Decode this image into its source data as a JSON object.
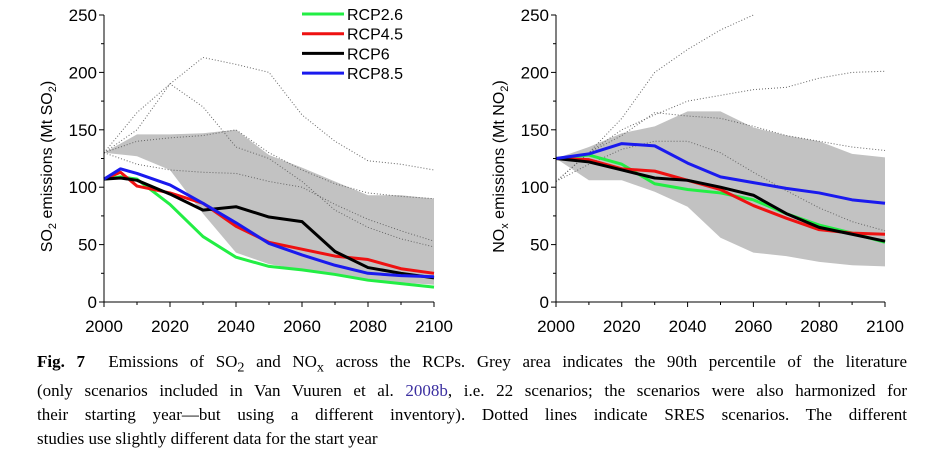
{
  "chart_data": [
    {
      "type": "line",
      "ylabel_parts": [
        "SO",
        "2",
        " emissions (Mt SO",
        "2",
        ")"
      ],
      "xlim": [
        2000,
        2100
      ],
      "ylim": [
        0,
        250
      ],
      "xticks": [
        2000,
        2020,
        2040,
        2060,
        2080,
        2100
      ],
      "yticks": [
        0,
        50,
        100,
        150,
        200,
        250
      ],
      "grid": false,
      "legend_position": "top-right",
      "x": [
        2000,
        2005,
        2010,
        2020,
        2030,
        2040,
        2050,
        2060,
        2070,
        2080,
        2090,
        2100
      ],
      "series": [
        {
          "name": "RCP2.6",
          "color": "#22ee44",
          "values": [
            107,
            109,
            107,
            85,
            57,
            39,
            31,
            28,
            24,
            19,
            16,
            13
          ]
        },
        {
          "name": "RCP4.5",
          "color": "#ee1111",
          "values": [
            107,
            113,
            101,
            95,
            86,
            66,
            52,
            46,
            40,
            37,
            29,
            25
          ]
        },
        {
          "name": "RCP6",
          "color": "#000000",
          "values": [
            107,
            108,
            106,
            94,
            80,
            83,
            74,
            70,
            44,
            30,
            25,
            21
          ]
        },
        {
          "name": "RCP8.5",
          "color": "#1a1aee",
          "values": [
            107,
            116,
            112,
            102,
            86,
            69,
            51,
            41,
            32,
            25,
            23,
            22
          ]
        }
      ],
      "band": {
        "color": "#c2c2c2",
        "x": [
          2000,
          2010,
          2020,
          2030,
          2040,
          2050,
          2060,
          2070,
          2080,
          2090,
          2100
        ],
        "upper": [
          130,
          146,
          146,
          147,
          150,
          128,
          117,
          105,
          93,
          93,
          90
        ],
        "lower": [
          130,
          127,
          115,
          77,
          43,
          33,
          28,
          24,
          20,
          17,
          15
        ]
      },
      "dotted_x": [
        2000,
        2010,
        2020,
        2030,
        2040,
        2050,
        2060,
        2070,
        2080,
        2090,
        2100
      ],
      "dotted": [
        [
          130,
          165,
          190,
          213,
          207,
          200,
          163,
          140,
          123,
          120,
          115
        ],
        [
          130,
          150,
          190,
          170,
          135,
          125,
          105,
          80,
          65,
          55,
          48
        ],
        [
          130,
          140,
          143,
          145,
          150,
          130,
          115,
          103,
          95,
          92,
          90
        ],
        [
          130,
          120,
          115,
          113,
          112,
          105,
          100,
          85,
          72,
          62,
          53
        ]
      ]
    },
    {
      "type": "line",
      "ylabel_parts": [
        "NO",
        "x",
        " emissions (Mt NO",
        "2",
        ")"
      ],
      "xlim": [
        2000,
        2100
      ],
      "ylim": [
        0,
        250
      ],
      "xticks": [
        2000,
        2020,
        2040,
        2060,
        2080,
        2100
      ],
      "yticks": [
        0,
        50,
        100,
        150,
        200,
        250
      ],
      "grid": false,
      "x": [
        2000,
        2010,
        2020,
        2030,
        2040,
        2050,
        2060,
        2070,
        2080,
        2090,
        2100
      ],
      "series": [
        {
          "name": "RCP2.6",
          "color": "#22ee44",
          "values": [
            125,
            128,
            120,
            103,
            98,
            95,
            89,
            77,
            67,
            60,
            52
          ]
        },
        {
          "name": "RCP4.5",
          "color": "#ee1111",
          "values": [
            125,
            124,
            116,
            114,
            106,
            98,
            84,
            73,
            63,
            60,
            59
          ]
        },
        {
          "name": "RCP6",
          "color": "#000000",
          "values": [
            125,
            122,
            115,
            108,
            106,
            100,
            93,
            77,
            65,
            59,
            53
          ]
        },
        {
          "name": "RCP8.5",
          "color": "#1a1aee",
          "values": [
            125,
            129,
            138,
            136,
            121,
            109,
            104,
            99,
            95,
            89,
            86
          ]
        }
      ],
      "band": {
        "color": "#c2c2c2",
        "x": [
          2000,
          2010,
          2020,
          2030,
          2040,
          2050,
          2060,
          2070,
          2080,
          2090,
          2100
        ],
        "upper": [
          125,
          135,
          147,
          153,
          166,
          166,
          152,
          145,
          140,
          129,
          126
        ],
        "lower": [
          125,
          106,
          106,
          96,
          83,
          56,
          43,
          40,
          35,
          32,
          31
        ]
      },
      "dotted_x": [
        2000,
        2010,
        2020,
        2030,
        2040,
        2050,
        2060,
        2070,
        2080,
        2090,
        2100
      ],
      "dotted": [
        [
          105,
          130,
          160,
          200,
          220,
          237,
          250,
          null,
          null,
          null,
          null
        ],
        [
          105,
          130,
          150,
          163,
          175,
          180,
          185,
          187,
          195,
          200,
          201
        ],
        [
          105,
          130,
          145,
          165,
          162,
          160,
          153,
          145,
          140,
          135,
          132
        ],
        [
          105,
          120,
          133,
          140,
          140,
          130,
          113,
          97,
          82,
          70,
          62
        ]
      ]
    }
  ],
  "caption": {
    "fig_label": "Fig. 7",
    "l1a": "Emissions of SO",
    "l1sub1": "2",
    "l1b": " and NO",
    "l1sub2": "x",
    "l1c": " across the RCPs. Grey area indicates the 90th percentile of the literature",
    "l2a": "(only scenarios included in Van Vuuren et al. ",
    "l2link": "2008b",
    "l2b": ", i.e. 22 scenarios; the scenarios were also harmonized for",
    "l3": "their starting year—but using a different inventory). Dotted lines indicate SRES scenarios. The different",
    "l4": "studies use slightly different data for the start year"
  }
}
